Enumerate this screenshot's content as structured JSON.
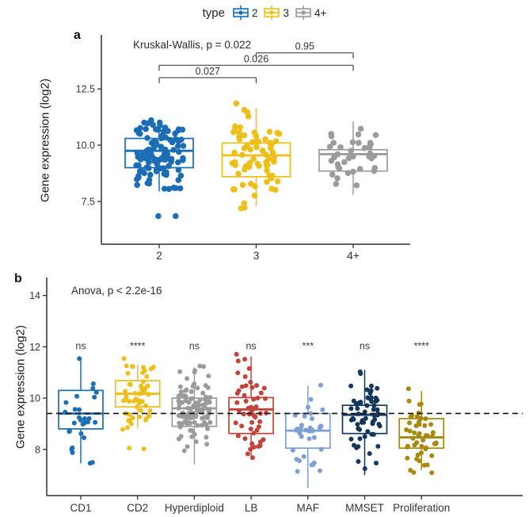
{
  "legend": {
    "title": "type",
    "position": "top-center",
    "items": [
      {
        "label": "2",
        "color": "#1b6db5"
      },
      {
        "label": "3",
        "color": "#edbf1a"
      },
      {
        "label": "4+",
        "color": "#9b9b9b"
      }
    ]
  },
  "chart_data": [
    {
      "id": "a",
      "type": "boxplot-jitter",
      "panel_label": "a",
      "stat_annotation": "Kruskal-Wallis, p = 0.022",
      "ylabel": "Gene expression (log2)",
      "yticks": [
        7.5,
        10.0,
        12.5
      ],
      "ytick_labels": [
        "7.5",
        "10.0",
        "12.5"
      ],
      "ylim": [
        5.6,
        14.9
      ],
      "grid": false,
      "categories": [
        "2",
        "3",
        "4+"
      ],
      "colors": [
        "#1b6db5",
        "#edbf1a",
        "#9b9b9b"
      ],
      "groups": [
        {
          "label": "2",
          "n": 110,
          "whisker_low": 7.95,
          "q1": 9.0,
          "median": 9.75,
          "q3": 10.3,
          "whisker_high": 10.9,
          "outliers": [
            6.85,
            6.85
          ]
        },
        {
          "label": "3",
          "n": 70,
          "whisker_low": 7.3,
          "q1": 8.6,
          "median": 9.55,
          "q3": 10.1,
          "whisker_high": 11.65,
          "outliers": []
        },
        {
          "label": "4+",
          "n": 38,
          "whisker_low": 7.8,
          "q1": 8.85,
          "median": 9.6,
          "q3": 9.8,
          "whisker_high": 11.05,
          "outliers": []
        }
      ],
      "comparisons": [
        {
          "a": 0,
          "b": 1,
          "label": "0.027",
          "y": 13.0
        },
        {
          "a": 0,
          "b": 2,
          "label": "0.026",
          "y": 13.55
        },
        {
          "a": 1,
          "b": 2,
          "label": "0.95",
          "y": 14.1
        }
      ]
    },
    {
      "id": "b",
      "type": "boxplot-jitter",
      "panel_label": "b",
      "stat_annotation": "Anova, p < 2.2e-16",
      "ylabel": "Gene expression (log2)",
      "yticks": [
        8,
        10,
        12,
        14
      ],
      "ytick_labels": [
        "8",
        "10",
        "12",
        "14"
      ],
      "ylim": [
        6.2,
        14.7
      ],
      "grid": false,
      "dashed_line_y": 9.4,
      "sig_label_y": 11.9,
      "categories": [
        "CD1",
        "CD2",
        "Hyperdiploid",
        "LB",
        "MAF",
        "MMSET",
        "Proliferation"
      ],
      "colors": [
        "#1b6db5",
        "#edbf1a",
        "#9b9b9b",
        "#c2423c",
        "#7e9fd4",
        "#15375c",
        "#a8880f"
      ],
      "significance": [
        "ns",
        "****",
        "ns",
        "ns",
        "***",
        "ns",
        "****"
      ],
      "groups": [
        {
          "label": "CD1",
          "n": 28,
          "whisker_low": 7.45,
          "q1": 8.8,
          "median": 9.4,
          "q3": 10.3,
          "whisker_high": 11.6,
          "outliers": []
        },
        {
          "label": "CD2",
          "n": 55,
          "whisker_low": 8.85,
          "q1": 9.66,
          "median": 10.17,
          "q3": 10.68,
          "whisker_high": 11.3,
          "outliers": [
            8.05,
            8.02
          ]
        },
        {
          "label": "Hyperdiploid",
          "n": 110,
          "whisker_low": 7.4,
          "q1": 8.9,
          "median": 9.6,
          "q3": 10.0,
          "whisker_high": 11.2,
          "outliers": []
        },
        {
          "label": "LB",
          "n": 55,
          "whisker_low": 7.75,
          "q1": 8.62,
          "median": 9.56,
          "q3": 10.02,
          "whisker_high": 11.62,
          "outliers": []
        },
        {
          "label": "MAF",
          "n": 35,
          "whisker_low": 6.5,
          "q1": 8.05,
          "median": 8.73,
          "q3": 9.4,
          "whisker_high": 10.49,
          "outliers": []
        },
        {
          "label": "MMSET",
          "n": 65,
          "whisker_low": 7.0,
          "q1": 8.62,
          "median": 9.35,
          "q3": 9.72,
          "whisker_high": 11.1,
          "outliers": []
        },
        {
          "label": "Proliferation",
          "n": 50,
          "whisker_low": 7.2,
          "q1": 8.05,
          "median": 8.47,
          "q3": 9.2,
          "whisker_high": 10.28,
          "outliers": []
        }
      ]
    }
  ]
}
